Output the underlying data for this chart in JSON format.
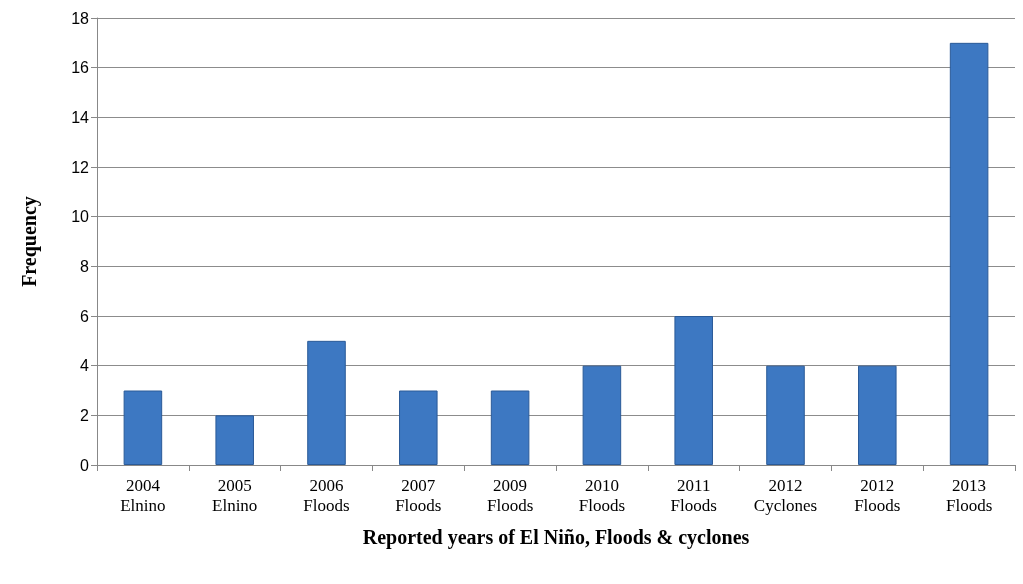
{
  "chart_data": {
    "type": "bar",
    "xlabel": "Reported years of El Niño, Floods & cyclones",
    "ylabel": "Frequency",
    "categories": [
      "2004\nElnino",
      "2005\nElnino",
      "2006\nFloods",
      "2007\nFloods",
      "2009\nFloods",
      "2010\nFloods",
      "2011\nFloods",
      "2012\nCyclones",
      "2012\nFloods",
      "2013\nFloods"
    ],
    "values": [
      3,
      2,
      5,
      3,
      3,
      4,
      6,
      4,
      4,
      17
    ],
    "color": "#3d78c2",
    "ylim": [
      0,
      18
    ],
    "yticks": [
      0,
      2,
      4,
      6,
      8,
      10,
      12,
      14,
      16,
      18
    ],
    "grid": "y"
  }
}
